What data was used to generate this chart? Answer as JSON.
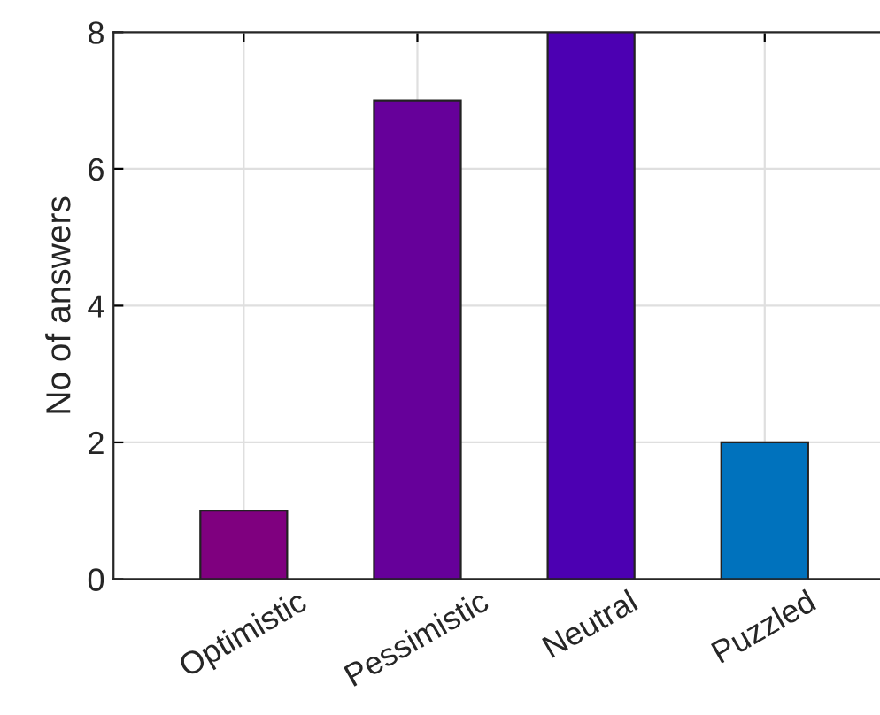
{
  "chart_data": {
    "type": "bar",
    "ylabel": "No of answers",
    "categories": [
      "Optimistic",
      "Pessimistic",
      "Neutral",
      "Puzzled"
    ],
    "values": [
      1,
      7,
      8,
      2
    ],
    "colors": [
      "#7f007f",
      "#66009a",
      "#4c00b2",
      "#0072bd"
    ],
    "ylim": [
      0,
      8
    ],
    "yticks": [
      0,
      2,
      4,
      6,
      8
    ],
    "grid": true
  }
}
